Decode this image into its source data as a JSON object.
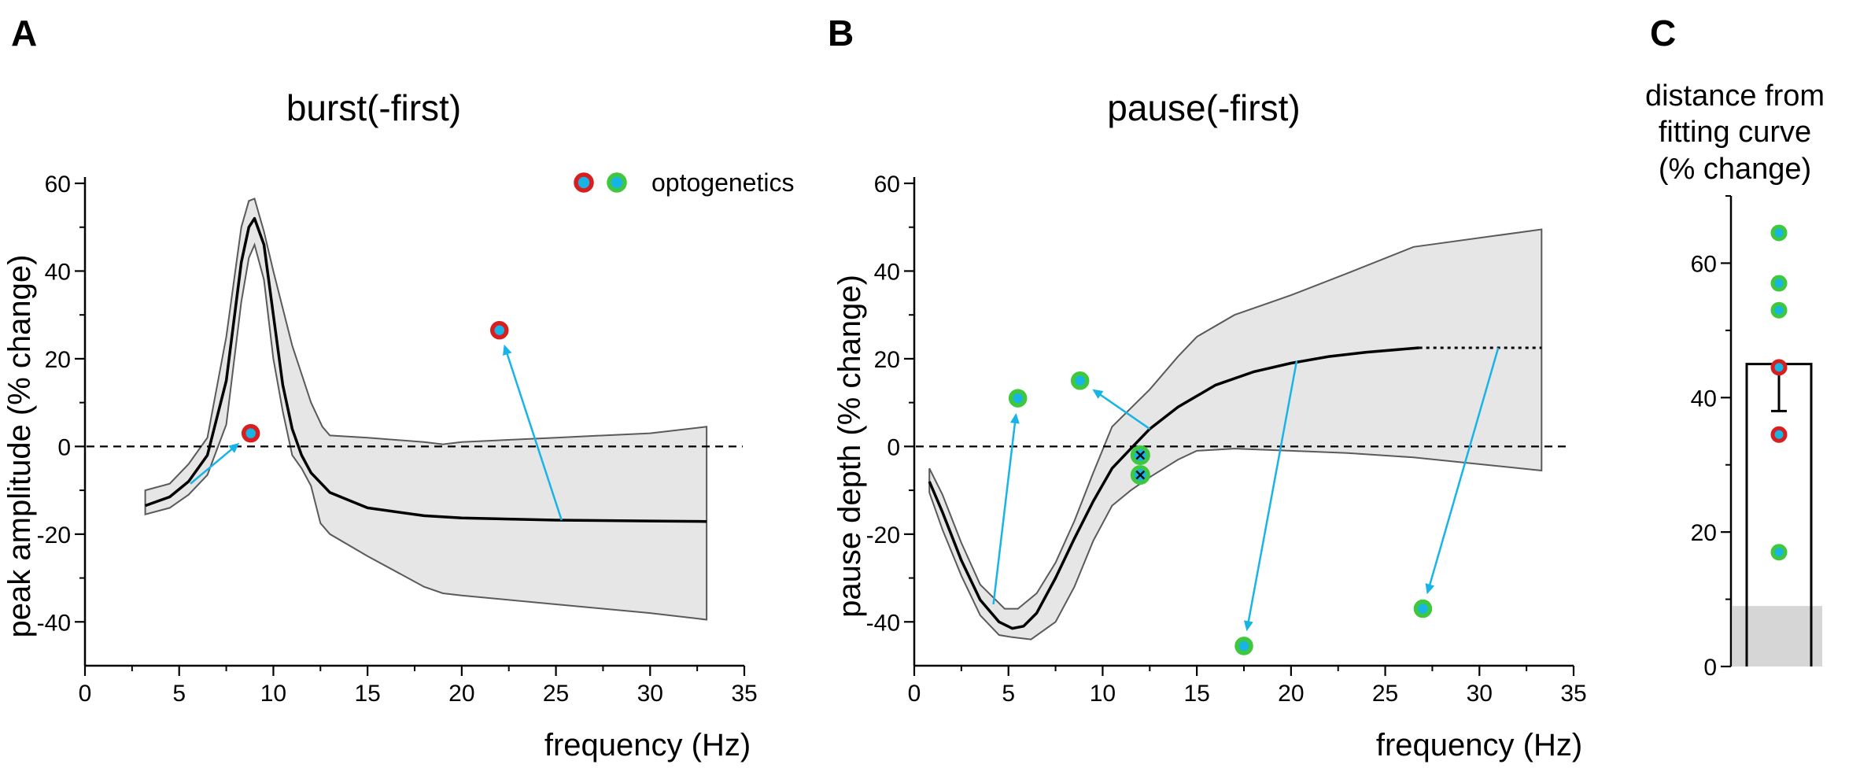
{
  "colors": {
    "band_fill": "#e6e6e6",
    "band_stroke": "#5a5a5a",
    "curve": "#000000",
    "arrow": "#18b4e6",
    "dot_center": "#18b4e6",
    "dot_ring_red": "#d81e1e",
    "dot_ring_green": "#3ec83e",
    "bar_shading": "#d6d6d6"
  },
  "chart_data": [
    {
      "panel": "A",
      "type": "line",
      "title": "burst(-first)",
      "xlabel": "frequency (Hz)",
      "ylabel": "peak amplitude (% change)",
      "xlim": [
        0,
        35
      ],
      "ylim": [
        -50,
        60
      ],
      "xticks": [
        0,
        5,
        10,
        15,
        20,
        25,
        30,
        35
      ],
      "yticks": [
        -40,
        -20,
        0,
        20,
        40,
        60
      ],
      "zero_line": true,
      "legend": {
        "text": "optogenetics",
        "position": "top-right",
        "markers": [
          "red-ring",
          "green-ring"
        ]
      },
      "fit_curve": {
        "x": [
          3.2,
          4.5,
          5.5,
          6.5,
          7.5,
          8.3,
          8.7,
          9.0,
          9.5,
          10.0,
          10.5,
          11.0,
          11.5,
          12.0,
          13.0,
          15.0,
          18.0,
          20.0,
          25.0,
          30.0,
          33.0
        ],
        "y": [
          -13.5,
          -11.5,
          -8.0,
          -2.0,
          15.0,
          42.0,
          50.0,
          52.0,
          46.0,
          30.0,
          14.0,
          4.0,
          -2.0,
          -6.0,
          -10.5,
          -14.0,
          -15.8,
          -16.3,
          -16.8,
          -17.0,
          -17.1
        ]
      },
      "confidence_band": {
        "upper_x": [
          3.2,
          4.5,
          5.5,
          6.5,
          7.5,
          8.3,
          8.7,
          9.0,
          9.5,
          10.0,
          11.0,
          12.0,
          12.6,
          13.0,
          15.0,
          18.0,
          19.0,
          20.0,
          25.0,
          30.0,
          33.0
        ],
        "upper_y": [
          -10.0,
          -8.5,
          -4.0,
          2.0,
          25.0,
          50.0,
          56.0,
          56.5,
          49.0,
          40.0,
          23.0,
          10.0,
          4.5,
          2.5,
          2.0,
          1.0,
          0.5,
          1.0,
          2.0,
          3.0,
          4.5
        ],
        "lower_x": [
          3.2,
          4.5,
          5.5,
          6.5,
          7.5,
          8.3,
          8.7,
          9.0,
          9.5,
          10.0,
          10.5,
          11.0,
          11.5,
          12.0,
          12.5,
          13.0,
          15.0,
          18.0,
          19.0,
          20.0,
          25.0,
          30.0,
          33.0
        ],
        "lower_y": [
          -15.5,
          -14.0,
          -11.0,
          -6.5,
          5.0,
          33.0,
          43.0,
          46.0,
          38.0,
          20.0,
          8.0,
          -2.0,
          -5.0,
          -9.0,
          -17.5,
          -20.0,
          -25.0,
          -32.0,
          -33.5,
          -34.0,
          -36.0,
          -38.0,
          -39.5
        ]
      },
      "optogenetic_points": [
        {
          "x": 8.8,
          "y": 3.0,
          "ring": "red",
          "arrow_from": [
            5.6,
            -8.5
          ]
        },
        {
          "x": 22.0,
          "y": 26.5,
          "ring": "red",
          "arrow_from": [
            25.3,
            -16.8
          ]
        }
      ]
    },
    {
      "panel": "B",
      "type": "line",
      "title": "pause(-first)",
      "xlabel": "frequency (Hz)",
      "ylabel": "pause depth  (% change)",
      "xlim": [
        0,
        35
      ],
      "ylim": [
        -50,
        60
      ],
      "xticks": [
        0,
        5,
        10,
        15,
        20,
        25,
        30,
        35
      ],
      "yticks": [
        -40,
        -20,
        0,
        20,
        40,
        60
      ],
      "zero_line": true,
      "fit_curve": {
        "x": [
          0.8,
          1.5,
          2.5,
          3.5,
          4.5,
          5.2,
          5.8,
          6.5,
          7.5,
          8.5,
          9.5,
          10.5,
          11.5,
          12.5,
          14.0,
          16.0,
          18.0,
          20.0,
          22.0,
          24.0,
          26.8
        ],
        "y": [
          -8.0,
          -15.0,
          -26.0,
          -35.0,
          -40.0,
          -41.5,
          -41.0,
          -38.0,
          -30.0,
          -21.0,
          -12.5,
          -5.0,
          -0.5,
          4.0,
          9.0,
          14.0,
          17.0,
          19.0,
          20.5,
          21.5,
          22.5
        ]
      },
      "extrapolation": {
        "x": [
          26.8,
          33.3
        ],
        "y": [
          22.5,
          22.5
        ],
        "style": "dotted"
      },
      "confidence_band": {
        "upper_x": [
          0.8,
          1.5,
          2.5,
          3.5,
          4.8,
          5.5,
          6.5,
          7.5,
          8.5,
          9.5,
          10.5,
          12.5,
          14.0,
          15.0,
          17.0,
          20.0,
          23.0,
          26.5,
          33.3
        ],
        "upper_y": [
          -5.0,
          -11.0,
          -22.0,
          -31.5,
          -37.0,
          -37.0,
          -33.5,
          -26.5,
          -17.0,
          -6.0,
          4.5,
          13.0,
          20.5,
          25.0,
          30.0,
          34.5,
          39.5,
          45.5,
          49.5
        ],
        "lower_x": [
          0.8,
          1.5,
          2.5,
          3.5,
          4.5,
          5.2,
          6.2,
          7.5,
          8.5,
          9.5,
          10.5,
          11.5,
          12.5,
          14.0,
          15.0,
          17.0,
          20.0,
          23.0,
          26.5,
          33.3
        ],
        "lower_y": [
          -10.5,
          -19.0,
          -29.5,
          -38.5,
          -43.0,
          -43.5,
          -44.0,
          -40.0,
          -32.0,
          -21.5,
          -13.5,
          -10.0,
          -7.0,
          -3.0,
          -1.0,
          -0.5,
          -1.0,
          -1.5,
          -2.5,
          -5.5
        ]
      },
      "optogenetic_points": [
        {
          "x": 5.5,
          "y": 11.0,
          "ring": "green",
          "arrow_from": [
            4.2,
            -36.0
          ]
        },
        {
          "x": 8.8,
          "y": 15.0,
          "ring": "green",
          "arrow_from": [
            12.5,
            4.0
          ]
        },
        {
          "x": 17.5,
          "y": -45.5,
          "ring": "green",
          "arrow_from": [
            20.3,
            19.5
          ]
        },
        {
          "x": 27.0,
          "y": -37.0,
          "ring": "green",
          "arrow_from": [
            31.0,
            22.5
          ]
        }
      ],
      "crossed_points": [
        {
          "x": 12.0,
          "y": -2.0,
          "mark": "x"
        },
        {
          "x": 12.0,
          "y": -6.5,
          "mark": "x"
        }
      ]
    },
    {
      "panel": "C",
      "type": "bar",
      "title_lines": [
        "distance from",
        "fitting curve",
        "(% change)"
      ],
      "ylim": [
        0,
        70
      ],
      "yticks": [
        0,
        20,
        40,
        60
      ],
      "bar_mean": 45.0,
      "error_low": 38.0,
      "shaded_level": 9.0,
      "points": [
        {
          "y": 64.5,
          "ring": "green"
        },
        {
          "y": 57.0,
          "ring": "green"
        },
        {
          "y": 53.0,
          "ring": "green"
        },
        {
          "y": 44.5,
          "ring": "red"
        },
        {
          "y": 34.5,
          "ring": "red"
        },
        {
          "y": 17.0,
          "ring": "green"
        }
      ]
    }
  ]
}
